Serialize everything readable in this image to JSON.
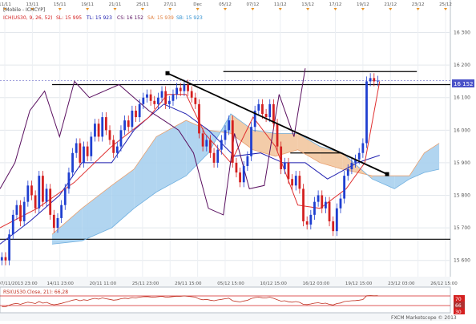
{
  "header": {
    "symbol_line": "[Mobile - ICHCYP]",
    "indicator_line": "ICH(US30, 9, 26, 52)",
    "sl_label": "SL: 15 995",
    "tl_label": "TL: 15 923",
    "cs_label": "CS: 16 152",
    "sa_label": "SA: 15 939",
    "sb_label": "SB: 15 923"
  },
  "top_dates": [
    "11/11",
    "13/11",
    "15/11",
    "19/11",
    "21/11",
    "25/11",
    "27/11",
    "Dec",
    "05/12",
    "07/12",
    "11/12",
    "13/12",
    "17/12",
    "19/12",
    "21/12",
    "23/12",
    "25/12"
  ],
  "bottom_dates": [
    "07/11/2013 23:00",
    "14/11 23:00",
    "20/11 11:00",
    "25/11 23:00",
    "29/11 15:00",
    "05/12 15:00",
    "10/12 15:00",
    "16/12 03:00",
    "19/12 15:00",
    "23/12 03:00",
    "26/12 15:00"
  ],
  "rsi": {
    "label": "RSI(US30.Close, 21): 66,28",
    "levels": [
      "70",
      "30"
    ],
    "badge": "66"
  },
  "last_price": "16 152",
  "footer": "FXCM Marketscope © 2013",
  "colors": {
    "up": "#1f3fd0",
    "down": "#d42020",
    "kijun": "#2020b0",
    "tenkan": "#e03030",
    "chikou": "#5a1060",
    "cloud_bull": "#a8d0ee",
    "cloud_bear": "#f2c7a0",
    "trendline": "#000000"
  },
  "chart_data": {
    "type": "candlestick",
    "title": "",
    "y_ticks": [
      15600,
      15700,
      15800,
      15900,
      16000,
      16100,
      16200,
      16300
    ],
    "y_tick_labels": [
      "15 600",
      "15 700",
      "15 800",
      "15 900",
      "16 000",
      "16 100",
      "16 200",
      "16 300"
    ],
    "ylim": [
      15550,
      16390
    ],
    "x_range": [
      0,
      121
    ],
    "closes": [
      15610,
      15600,
      15680,
      15740,
      15770,
      15720,
      15780,
      15830,
      15800,
      15760,
      15860,
      15780,
      15820,
      15740,
      15700,
      15730,
      15770,
      15820,
      15870,
      15930,
      15960,
      15900,
      15950,
      15920,
      15980,
      16020,
      15980,
      16040,
      16000,
      15970,
      15930,
      15950,
      16000,
      16030,
      16010,
      16060,
      16040,
      16080,
      16100,
      16110,
      16090,
      16080,
      16100,
      16120,
      16080,
      16090,
      16110,
      16130,
      16120,
      16140,
      16120,
      16100,
      16080,
      15990,
      15950,
      15970,
      15930,
      15900,
      15940,
      15970,
      16000,
      16030,
      15900,
      15870,
      15840,
      15890,
      15920,
      16010,
      16060,
      16080,
      16050,
      16040,
      16080,
      16020,
      15950,
      15880,
      15900,
      15850,
      15830,
      15860,
      15820,
      15720,
      15710,
      15740,
      15780,
      15800,
      15760,
      15780,
      15720,
      15690,
      15760,
      15790,
      15860,
      15880,
      15900,
      15910,
      15930,
      15960,
      16150,
      16160,
      16150,
      16152
    ],
    "lines": {
      "tenkan": [
        [
          0,
          15700
        ],
        [
          10,
          15760
        ],
        [
          20,
          15840
        ],
        [
          30,
          15950
        ],
        [
          40,
          16040
        ],
        [
          45,
          16110
        ],
        [
          50,
          16110
        ],
        [
          55,
          15990
        ],
        [
          62,
          15900
        ],
        [
          68,
          16040
        ],
        [
          74,
          15950
        ],
        [
          80,
          15770
        ],
        [
          86,
          15760
        ],
        [
          93,
          15820
        ],
        [
          98,
          15900
        ],
        [
          102,
          16150
        ]
      ],
      "kijun": [
        [
          0,
          15650
        ],
        [
          8,
          15720
        ],
        [
          16,
          15800
        ],
        [
          22,
          15900
        ],
        [
          30,
          15900
        ],
        [
          36,
          16000
        ],
        [
          44,
          16080
        ],
        [
          50,
          16050
        ],
        [
          56,
          16000
        ],
        [
          63,
          15920
        ],
        [
          70,
          15930
        ],
        [
          76,
          15900
        ],
        [
          82,
          15900
        ],
        [
          88,
          15850
        ],
        [
          96,
          15900
        ],
        [
          102,
          15923
        ]
      ],
      "chikou": [
        [
          0,
          15820
        ],
        [
          4,
          15900
        ],
        [
          8,
          16060
        ],
        [
          12,
          16120
        ],
        [
          16,
          15980
        ],
        [
          20,
          16150
        ],
        [
          24,
          16100
        ],
        [
          28,
          16120
        ],
        [
          32,
          16140
        ],
        [
          36,
          16100
        ],
        [
          40,
          16060
        ],
        [
          44,
          16030
        ],
        [
          48,
          16000
        ],
        [
          52,
          15930
        ],
        [
          56,
          15760
        ],
        [
          60,
          15740
        ],
        [
          63,
          15990
        ],
        [
          67,
          15820
        ],
        [
          71,
          15830
        ],
        [
          75,
          16110
        ],
        [
          79,
          15980
        ],
        [
          82,
          16190
        ]
      ],
      "senkou_a": [
        [
          14,
          15680
        ],
        [
          22,
          15760
        ],
        [
          30,
          15830
        ],
        [
          36,
          15880
        ],
        [
          42,
          15980
        ],
        [
          50,
          16030
        ],
        [
          56,
          16000
        ],
        [
          62,
          15990
        ],
        [
          68,
          15940
        ],
        [
          74,
          15920
        ],
        [
          80,
          15940
        ],
        [
          86,
          15900
        ],
        [
          92,
          15880
        ],
        [
          100,
          15860
        ],
        [
          106,
          15860
        ],
        [
          110,
          15860
        ],
        [
          114,
          15930
        ],
        [
          118,
          15960
        ]
      ],
      "senkou_b": [
        [
          14,
          15650
        ],
        [
          22,
          15660
        ],
        [
          30,
          15700
        ],
        [
          36,
          15760
        ],
        [
          42,
          15810
        ],
        [
          50,
          15860
        ],
        [
          56,
          15930
        ],
        [
          62,
          16050
        ],
        [
          68,
          16000
        ],
        [
          74,
          15990
        ],
        [
          80,
          15990
        ],
        [
          86,
          15950
        ],
        [
          92,
          15930
        ],
        [
          100,
          15850
        ],
        [
          106,
          15820
        ],
        [
          110,
          15850
        ],
        [
          114,
          15870
        ],
        [
          118,
          15880
        ]
      ]
    },
    "horizontal_lines": [
      {
        "y": 16140,
        "x0": 14,
        "x1": 121
      },
      {
        "y": 16180,
        "x0": 60,
        "x1": 112
      },
      {
        "y": 15665,
        "x0": 0,
        "x1": 121
      },
      {
        "y": 15930,
        "x0": 78,
        "x1": 92
      }
    ],
    "trendline": {
      "x0": 45,
      "y0": 16175,
      "x1": 104,
      "y1": 15865
    },
    "rsi_range": [
      0,
      100
    ],
    "rsi_overbought": 70,
    "rsi_oversold": 30,
    "rsi_last": 66.28
  }
}
